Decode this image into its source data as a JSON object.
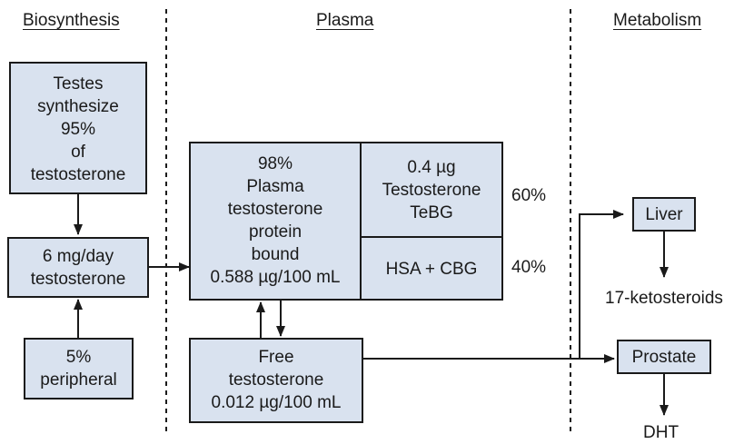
{
  "headings": {
    "biosynthesis": "Biosynthesis",
    "plasma": "Plasma",
    "metabolism": "Metabolism"
  },
  "boxes": {
    "testes": "Testes\nsynthesize\n95%\nof\ntestosterone",
    "daily": "6 mg/day\ntestosterone",
    "peripheral": "5%\nperipheral",
    "bound": "98%\nPlasma\ntestosterone\nprotein\nbound\n0.588 µg/100 mL",
    "tebg": "0.4 µg\nTestosterone\nTeBG",
    "hsa": "HSA + CBG",
    "free": "Free\ntestosterone\n0.012 µg/100 mL",
    "liver": "Liver",
    "prostate": "Prostate"
  },
  "percents": {
    "tebg": "60%",
    "hsa": "40%"
  },
  "products": {
    "ketosteroids": "17-ketosteroids",
    "dht": "DHT"
  },
  "colors": {
    "box_fill": "#d9e2ef",
    "line": "#1a1a1a"
  }
}
